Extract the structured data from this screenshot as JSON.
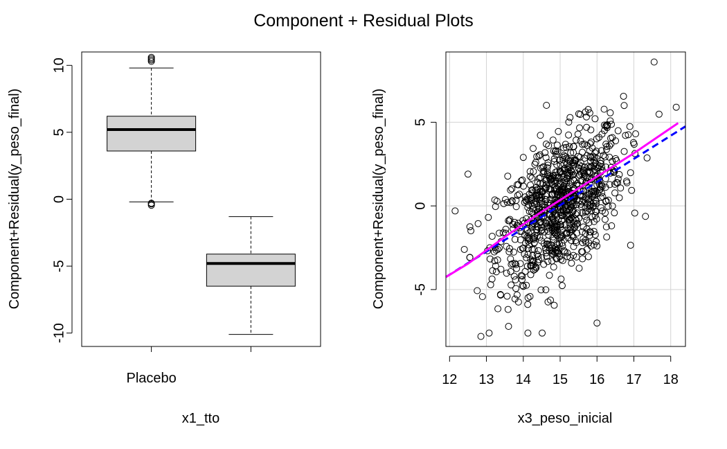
{
  "title": "Component + Residual Plots",
  "colors": {
    "box_fill": "#d3d3d3",
    "grid": "#d3d3d3",
    "fit_line": "#0000ff",
    "smooth_line": "#ff00ff",
    "points": "#000000"
  },
  "chart_data": [
    {
      "type": "box",
      "xlabel": "x1_tto",
      "ylabel": "Component+Residual(y_peso_final)",
      "ylim": [
        -11,
        11
      ],
      "yticks": [
        10,
        5,
        0,
        -5,
        -10
      ],
      "categories": [
        "Placebo",
        ""
      ],
      "boxes": [
        {
          "label": "Placebo",
          "whisker_low": -0.2,
          "q1": 3.6,
          "median": 5.2,
          "q3": 6.2,
          "whisker_high": 9.8,
          "outliers": [
            10.6,
            10.5,
            10.4,
            10.3,
            -0.3,
            -0.35,
            -0.45
          ]
        },
        {
          "label": "",
          "whisker_low": -10.1,
          "q1": -6.5,
          "median": -4.8,
          "q3": -4.1,
          "whisker_high": -1.3,
          "outliers": []
        }
      ],
      "grid": false
    },
    {
      "type": "scatter",
      "xlabel": "x3_peso_inicial",
      "ylabel": "Component+Residual(y_peso_final)",
      "xlim": [
        11.9,
        18.4
      ],
      "ylim": [
        -8.4,
        9.2
      ],
      "xticks": [
        12,
        13,
        14,
        15,
        16,
        17,
        18
      ],
      "yticks": [
        5,
        0,
        -5
      ],
      "grid": true,
      "points": {
        "count": 900,
        "x_mean": 15.0,
        "x_sd": 0.85,
        "slope": 1.45,
        "resid_sd": 2.0,
        "extra": [
          [
            12.15,
            -0.3
          ],
          [
            12.4,
            -2.6
          ],
          [
            12.85,
            -7.8
          ],
          [
            17.55,
            8.6
          ],
          [
            18.15,
            5.9
          ],
          [
            13.6,
            -7.2
          ],
          [
            16.0,
            -7.0
          ],
          [
            12.5,
            1.9
          ]
        ]
      },
      "fit_line": {
        "x": [
          11.9,
          18.4
        ],
        "y": [
          -4.25,
          4.75
        ]
      },
      "smooth_line": {
        "x": [
          11.9,
          12.5,
          13.0,
          13.5,
          14.0,
          14.5,
          15.0,
          15.5,
          16.0,
          16.5,
          17.0,
          17.5,
          18.2
        ],
        "y": [
          -4.25,
          -3.45,
          -2.65,
          -1.85,
          -1.1,
          -0.35,
          0.35,
          1.05,
          1.75,
          2.45,
          3.15,
          3.9,
          4.95
        ]
      }
    }
  ]
}
